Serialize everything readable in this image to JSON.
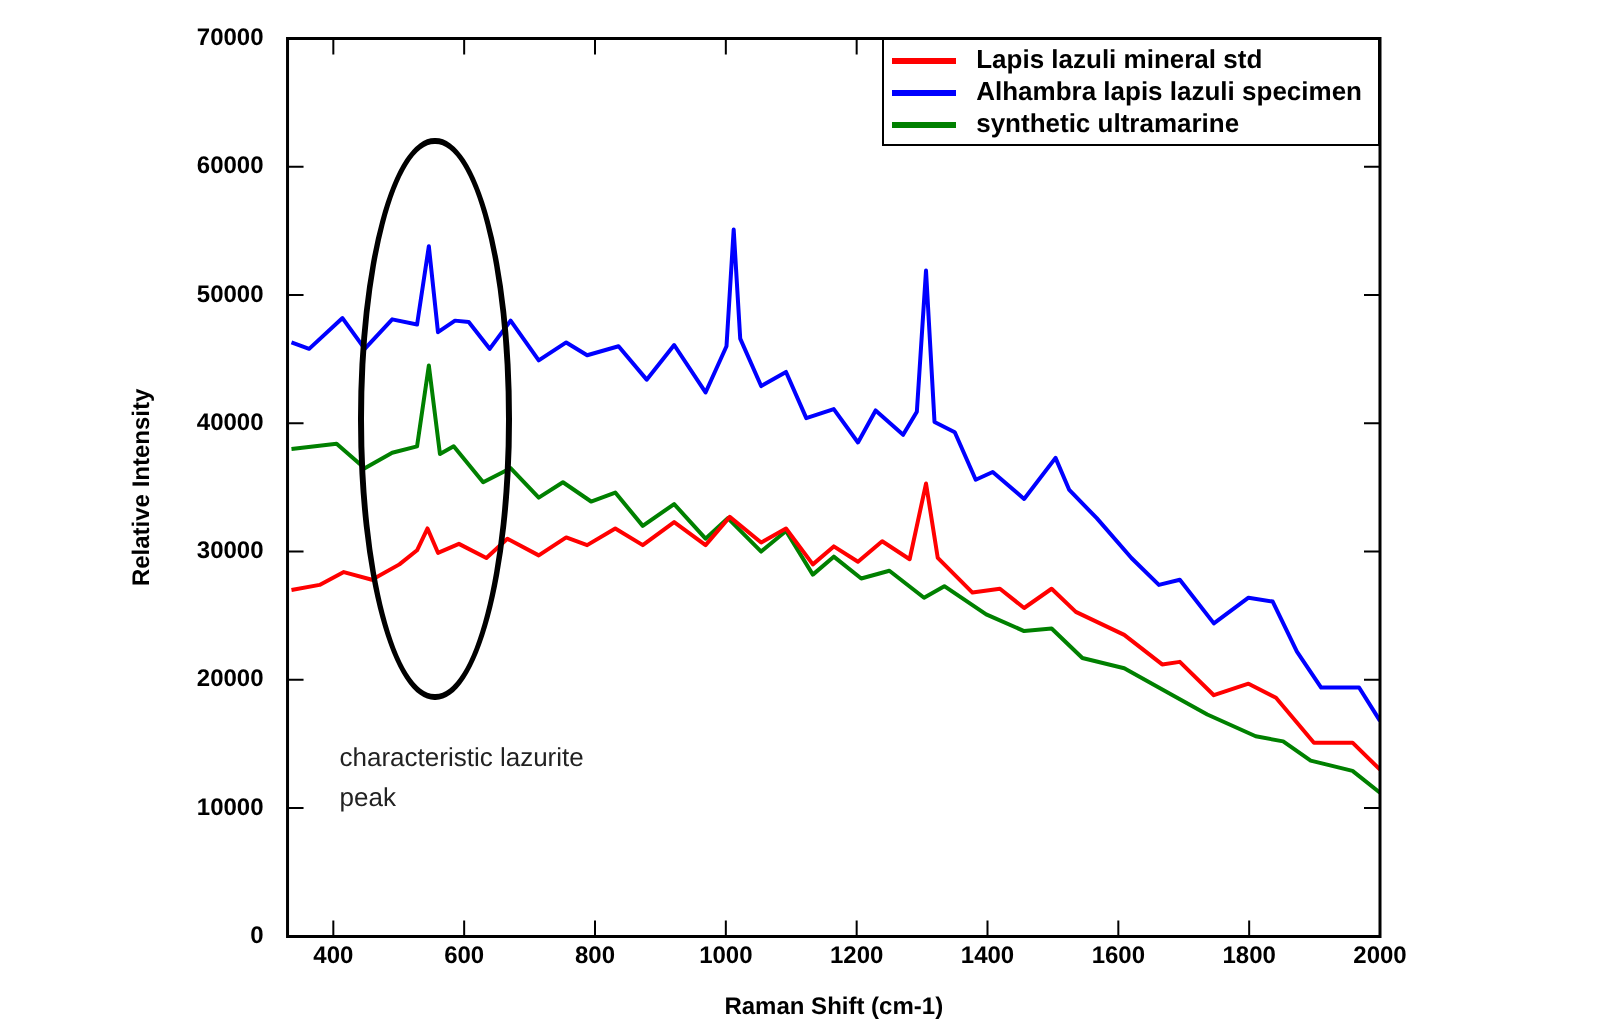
{
  "chart_data": {
    "type": "line",
    "xlabel": "Raman Shift (cm-1)",
    "ylabel": "Relative Intensity",
    "xlim": [
      330,
      2000
    ],
    "xticks": [
      400,
      600,
      800,
      1000,
      1200,
      1400,
      1600,
      1800,
      2000
    ],
    "ylim": [
      0,
      70000
    ],
    "yticks": [
      0,
      10000,
      20000,
      30000,
      40000,
      50000,
      60000,
      70000
    ],
    "grid": false,
    "legend": "top right",
    "marker": "none",
    "line_style": "solid",
    "annotations": [
      "characteristic lazurite peak"
    ],
    "series": [
      {
        "name": "Lapis lazuli mineral std",
        "color": "#ff0000",
        "x": [
          336,
          379,
          416,
          459,
          501,
          528,
          544,
          560,
          592,
          634,
          666,
          714,
          756,
          788,
          831,
          873,
          921,
          969,
          1006,
          1054,
          1092,
          1133,
          1165,
          1202,
          1239,
          1281,
          1306,
          1324,
          1377,
          1419,
          1456,
          1498,
          1535,
          1609,
          1667,
          1694,
          1746,
          1799,
          1841,
          1899,
          1958,
          2000
        ],
        "values": [
          27000,
          27400,
          28400,
          27800,
          29000,
          30100,
          31800,
          29900,
          30600,
          29500,
          31000,
          29700,
          31100,
          30500,
          31800,
          30500,
          32300,
          30500,
          32700,
          30700,
          31800,
          29000,
          30400,
          29200,
          30800,
          29400,
          35300,
          29500,
          26800,
          27100,
          25600,
          27100,
          25300,
          23500,
          21200,
          21400,
          18800,
          19700,
          18600,
          15100,
          15100,
          13000
        ]
      },
      {
        "name": "Alhambra lapis lazuli specimen",
        "color": "#0000ff",
        "x": [
          336,
          363,
          414,
          448,
          490,
          528,
          546,
          560,
          586,
          607,
          639,
          671,
          714,
          756,
          788,
          836,
          879,
          921,
          969,
          1001,
          1012,
          1022,
          1054,
          1092,
          1123,
          1165,
          1202,
          1229,
          1271,
          1292,
          1306,
          1319,
          1350,
          1382,
          1408,
          1456,
          1504,
          1525,
          1567,
          1620,
          1662,
          1694,
          1746,
          1799,
          1836,
          1873,
          1910,
          1968,
          2000
        ],
        "values": [
          46300,
          45800,
          48200,
          45800,
          48100,
          47700,
          53800,
          47100,
          48000,
          47900,
          45800,
          48000,
          44900,
          46300,
          45300,
          46000,
          43400,
          46100,
          42400,
          46000,
          55100,
          46600,
          42900,
          44000,
          40400,
          41100,
          38500,
          41000,
          39100,
          40900,
          51900,
          40100,
          39300,
          35600,
          36200,
          34100,
          37300,
          34800,
          32600,
          29500,
          27400,
          27800,
          24400,
          26400,
          26100,
          22200,
          19400,
          19400,
          16800
        ]
      },
      {
        "name": "synthetic ultramarine",
        "color": "#008000",
        "x": [
          336,
          405,
          448,
          490,
          528,
          546,
          563,
          584,
          629,
          671,
          714,
          751,
          794,
          831,
          873,
          921,
          969,
          1003,
          1054,
          1092,
          1133,
          1165,
          1207,
          1250,
          1303,
          1334,
          1398,
          1456,
          1498,
          1545,
          1609,
          1683,
          1736,
          1810,
          1852,
          1894,
          1958,
          2000
        ],
        "values": [
          38000,
          38400,
          36500,
          37700,
          38200,
          44500,
          37600,
          38200,
          35400,
          36500,
          34200,
          35400,
          33900,
          34600,
          32000,
          33700,
          31000,
          32600,
          30000,
          31600,
          28200,
          29600,
          27900,
          28500,
          26400,
          27300,
          25100,
          23800,
          24000,
          21700,
          20900,
          18800,
          17300,
          15600,
          15200,
          13700,
          12900,
          11200
        ]
      }
    ]
  }
}
